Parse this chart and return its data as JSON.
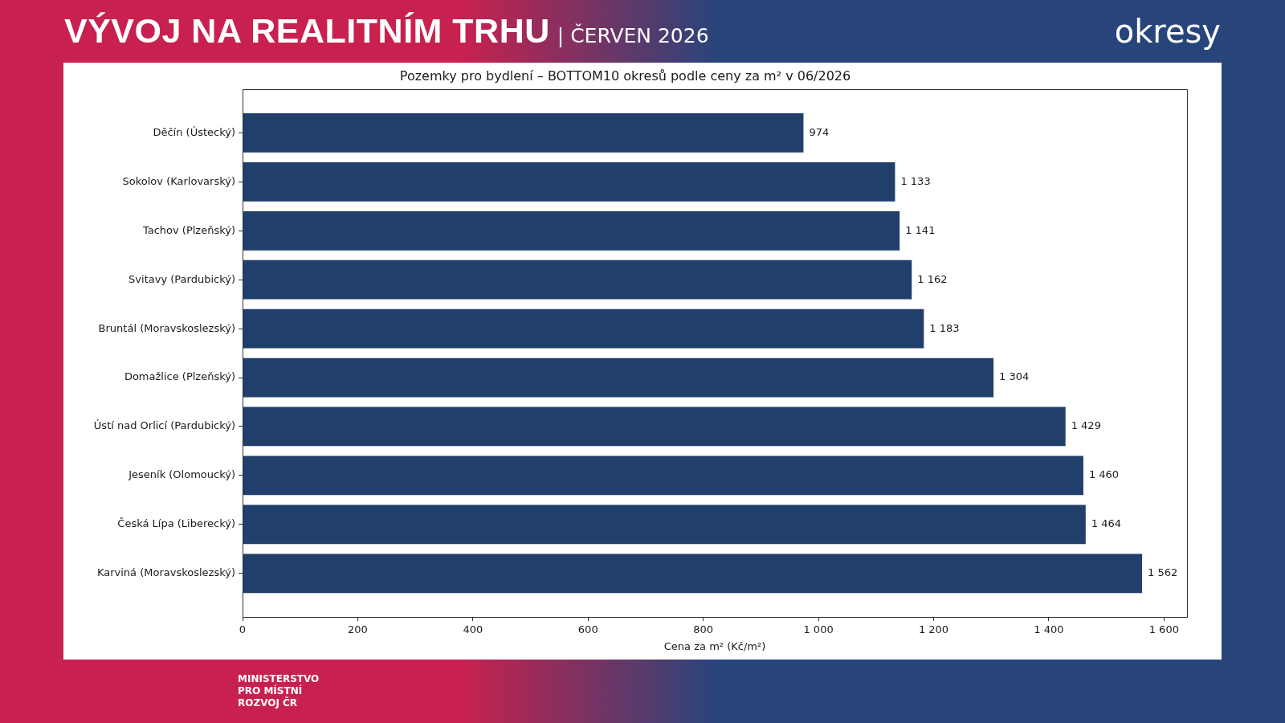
{
  "chart_data": {
    "type": "bar",
    "orientation": "horizontal",
    "title": "Pozemky pro bydlení – BOTTOM10 okresů podle ceny za m² v 06/2026",
    "xlabel": "Cena za m² (Kč/m²)",
    "categories": [
      "Děčín (Ústecký)",
      "Sokolov (Karlovarský)",
      "Tachov (Plzeňský)",
      "Svitavy (Pardubický)",
      "Bruntál (Moravskoslezský)",
      "Domažlice (Plzeňský)",
      "Ústí nad Orlicí (Pardubický)",
      "Jeseník (Olomoucký)",
      "Česká Lípa (Liberecký)",
      "Karviná (Moravskoslezský)"
    ],
    "values": [
      974,
      1133,
      1141,
      1162,
      1183,
      1304,
      1429,
      1460,
      1464,
      1562
    ],
    "color": "#213f6b",
    "value_labels": [
      "974",
      "1 133",
      "1 141",
      "1 162",
      "1 183",
      "1 304",
      "1 429",
      "1 460",
      "1 464",
      "1 562"
    ],
    "xlim": [
      0,
      1640
    ],
    "xticks": [
      0,
      200,
      400,
      600,
      800,
      {
        "value": 1000,
        "label": "1 000"
      },
      {
        "value": 1200,
        "label": "1 200"
      },
      {
        "value": 1400,
        "label": "1 400"
      },
      {
        "value": 1600,
        "label": "1 600"
      }
    ],
    "grid": false,
    "legend": false,
    "annotations": [
      "VÝVOJ NA REALITNÍM TRHU",
      "| ČERVEN 2026",
      "okresy",
      "MINISTERSTVO PRO MÍSTNÍ ROZVOJ ČR"
    ]
  }
}
